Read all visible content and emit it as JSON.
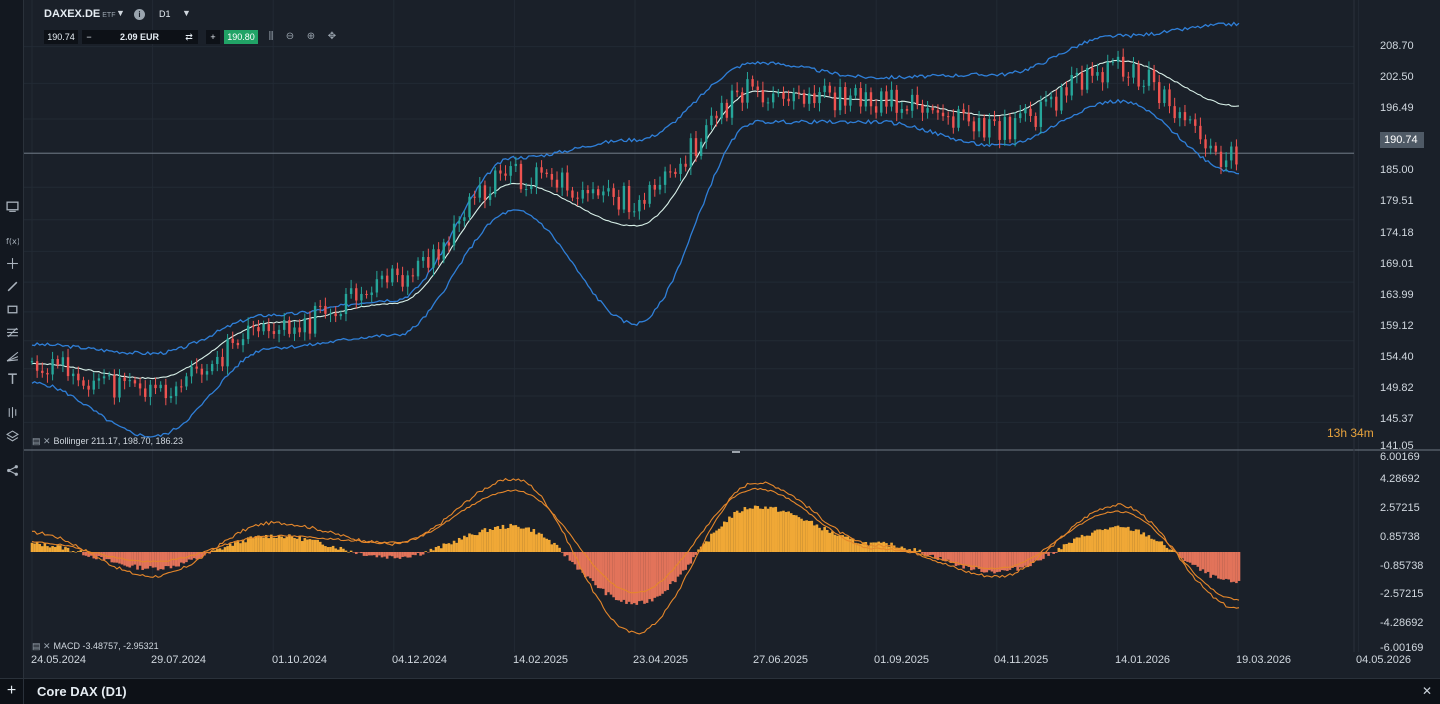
{
  "header": {
    "symbol": "DAXEX.DE",
    "symbol_badge": "ETF",
    "info_glyph": "i",
    "timeframe": "D1",
    "sell_price": "190.74",
    "minus_glyph": "−",
    "quantity": "2.09 EUR",
    "plus_glyph": "+",
    "buy_price": "190.80"
  },
  "toolbar_icons": [
    "screen-icon",
    "function-icon",
    "crosshair-icon",
    "line-tool-icon",
    "rectangle-icon",
    "fib-icon",
    "pitchfork-icon",
    "text-icon",
    "bars-icon",
    "layers-icon",
    "share-icon"
  ],
  "price_axis": {
    "ticks": [
      "208.70",
      "202.50",
      "196.49",
      "190.74",
      "185.00",
      "179.51",
      "174.18",
      "169.01",
      "163.99",
      "159.12",
      "154.40",
      "149.82",
      "145.37",
      "141.05"
    ],
    "current_price": "190.74",
    "countdown": "13h 34m"
  },
  "macd_axis": {
    "ticks": [
      "6.00169",
      "4.28692",
      "2.57215",
      "0.85738",
      "-0.85738",
      "-2.57215",
      "-4.28692",
      "-6.00169"
    ]
  },
  "indicators": {
    "bollinger_label": "Bollinger 211.17, 198.70, 186.23",
    "macd_label": "MACD -3.48757, -2.95321"
  },
  "time_axis": {
    "labels": [
      "24.05.2024",
      "29.07.2024",
      "01.10.2024",
      "04.12.2024",
      "14.02.2025",
      "23.04.2025",
      "27.06.2025",
      "01.09.2025",
      "04.11.2025",
      "14.01.2026",
      "19.03.2026",
      "04.05.2026"
    ]
  },
  "bottom_bar": {
    "title": "Core DAX (D1)",
    "plus_glyph": "+",
    "close_glyph": "✕"
  },
  "chart_data": {
    "type": "line",
    "title": "",
    "xlabel": "",
    "ylabel": "",
    "ylim": [
      141.05,
      211.5
    ],
    "x": [
      "24.05.2024",
      "29.07.2024",
      "01.10.2024",
      "04.12.2024",
      "14.02.2025",
      "23.04.2025",
      "27.06.2025",
      "01.09.2025",
      "04.11.2025",
      "14.01.2026",
      "19.03.2026"
    ],
    "series": [
      {
        "values": [
          155.0,
          150.5,
          160.5,
          169.5,
          186.8,
          183.0,
          201.5,
          199.5,
          195.0,
          205.0,
          189.5
        ]
      },
      {
        "values": [
          158.5,
          157.0,
          163.5,
          166.0,
          190.0,
          193.0,
          206.0,
          203.5,
          204.0,
          210.5,
          212.5
        ]
      },
      {
        "values": [
          152.0,
          143.0,
          158.0,
          160.0,
          181.0,
          162.0,
          196.0,
          196.0,
          192.0,
          199.5,
          187.5
        ]
      },
      {
        "values": [
          155.3,
          152.8,
          162.2,
          165.4,
          185.6,
          178.5,
          201.2,
          199.7,
          197.1,
          206.3,
          198.7
        ]
      }
    ],
    "macd": {
      "x": [
        "24.05.2024",
        "29.07.2024",
        "01.10.2024",
        "04.12.2024",
        "14.02.2025",
        "23.04.2025",
        "27.06.2025",
        "01.09.2025",
        "04.11.2025",
        "14.01.2026",
        "19.03.2026"
      ],
      "macd": [
        1.2,
        -1.5,
        1.8,
        0.5,
        4.5,
        -5.0,
        4.3,
        0.4,
        -1.5,
        2.9,
        -3.49
      ],
      "signal": [
        0.6,
        -0.6,
        1.0,
        0.6,
        3.8,
        -2.5,
        3.9,
        0.2,
        -1.0,
        2.5,
        -2.95
      ],
      "histogram": [
        0.5,
        -1.0,
        1.0,
        -0.3,
        1.6,
        -3.2,
        2.8,
        0.5,
        -1.2,
        1.5,
        -1.9
      ]
    },
    "colors": {
      "bull_candle": "#26a69a",
      "bear_candle": "#ef5350",
      "bollinger_band": "#2f7fd8",
      "bollinger_mid": "#d8f0e8",
      "macd_line": "#e5872b",
      "histogram_pos": "#f0a836",
      "histogram_neg": "#e2735a"
    }
  }
}
